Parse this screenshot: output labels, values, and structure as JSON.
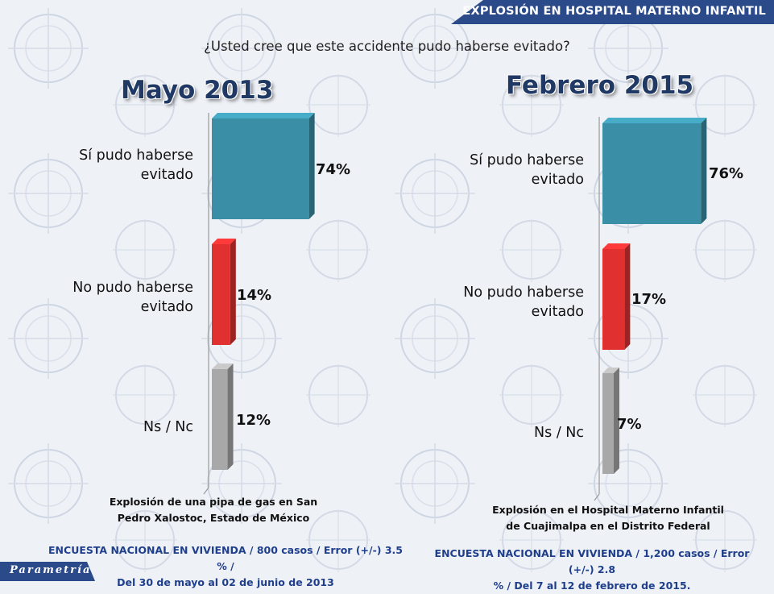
{
  "header": {
    "title": "EXPLOSIÓN EN HOSPITAL MATERNO INFANTIL"
  },
  "question": "¿Usted cree que este accidente pudo haberse evitado?",
  "brand": {
    "logo_text": "Parametría",
    "accent": "#1f3864",
    "band_color": "#2b4a8a"
  },
  "colors": {
    "yes": "#3a8fa6",
    "no": "#e03030",
    "ns": "#a8a8a8"
  },
  "chart_data": [
    {
      "type": "bar",
      "title": "Mayo 2013",
      "categories": [
        "Sí pudo haberse evitado",
        "No pudo haberse evitado",
        "Ns / Nc"
      ],
      "category_lines": [
        [
          "Sí pudo haberse",
          "evitado"
        ],
        [
          "No pudo haberse",
          "evitado"
        ],
        [
          "Ns / Nc"
        ]
      ],
      "values": [
        74,
        14,
        12
      ],
      "value_labels": [
        "74%",
        "14%",
        "12%"
      ],
      "orientation": "horizontal",
      "xlim": [
        0,
        100
      ],
      "caption_lines": [
        "Explosión de una pipa de gas en San",
        "Pedro Xalostoc, Estado de México"
      ],
      "footnote_lines": [
        "ENCUESTA NACIONAL EN VIVIENDA / 800 casos / Error (+/-) 3.5 % /",
        "Del 30 de mayo al 02 de junio de 2013"
      ]
    },
    {
      "type": "bar",
      "title": "Febrero 2015",
      "categories": [
        "Sí pudo haberse evitado",
        "No pudo haberse evitado",
        "Ns / Nc"
      ],
      "category_lines": [
        [
          "Sí pudo haberse",
          "evitado"
        ],
        [
          "No pudo haberse",
          "evitado"
        ],
        [
          "Ns / Nc"
        ]
      ],
      "values": [
        76,
        17,
        7
      ],
      "value_labels": [
        "76%",
        "17%",
        "7%"
      ],
      "orientation": "horizontal",
      "xlim": [
        0,
        100
      ],
      "caption_lines": [
        "Explosión en el Hospital Materno Infantil",
        "de Cuajimalpa en el Distrito Federal"
      ],
      "footnote_lines": [
        "ENCUESTA NACIONAL EN VIVIENDA / 1,200 casos / Error (+/-) 2.8",
        "% / Del 7 al 12 de febrero de 2015."
      ]
    }
  ]
}
